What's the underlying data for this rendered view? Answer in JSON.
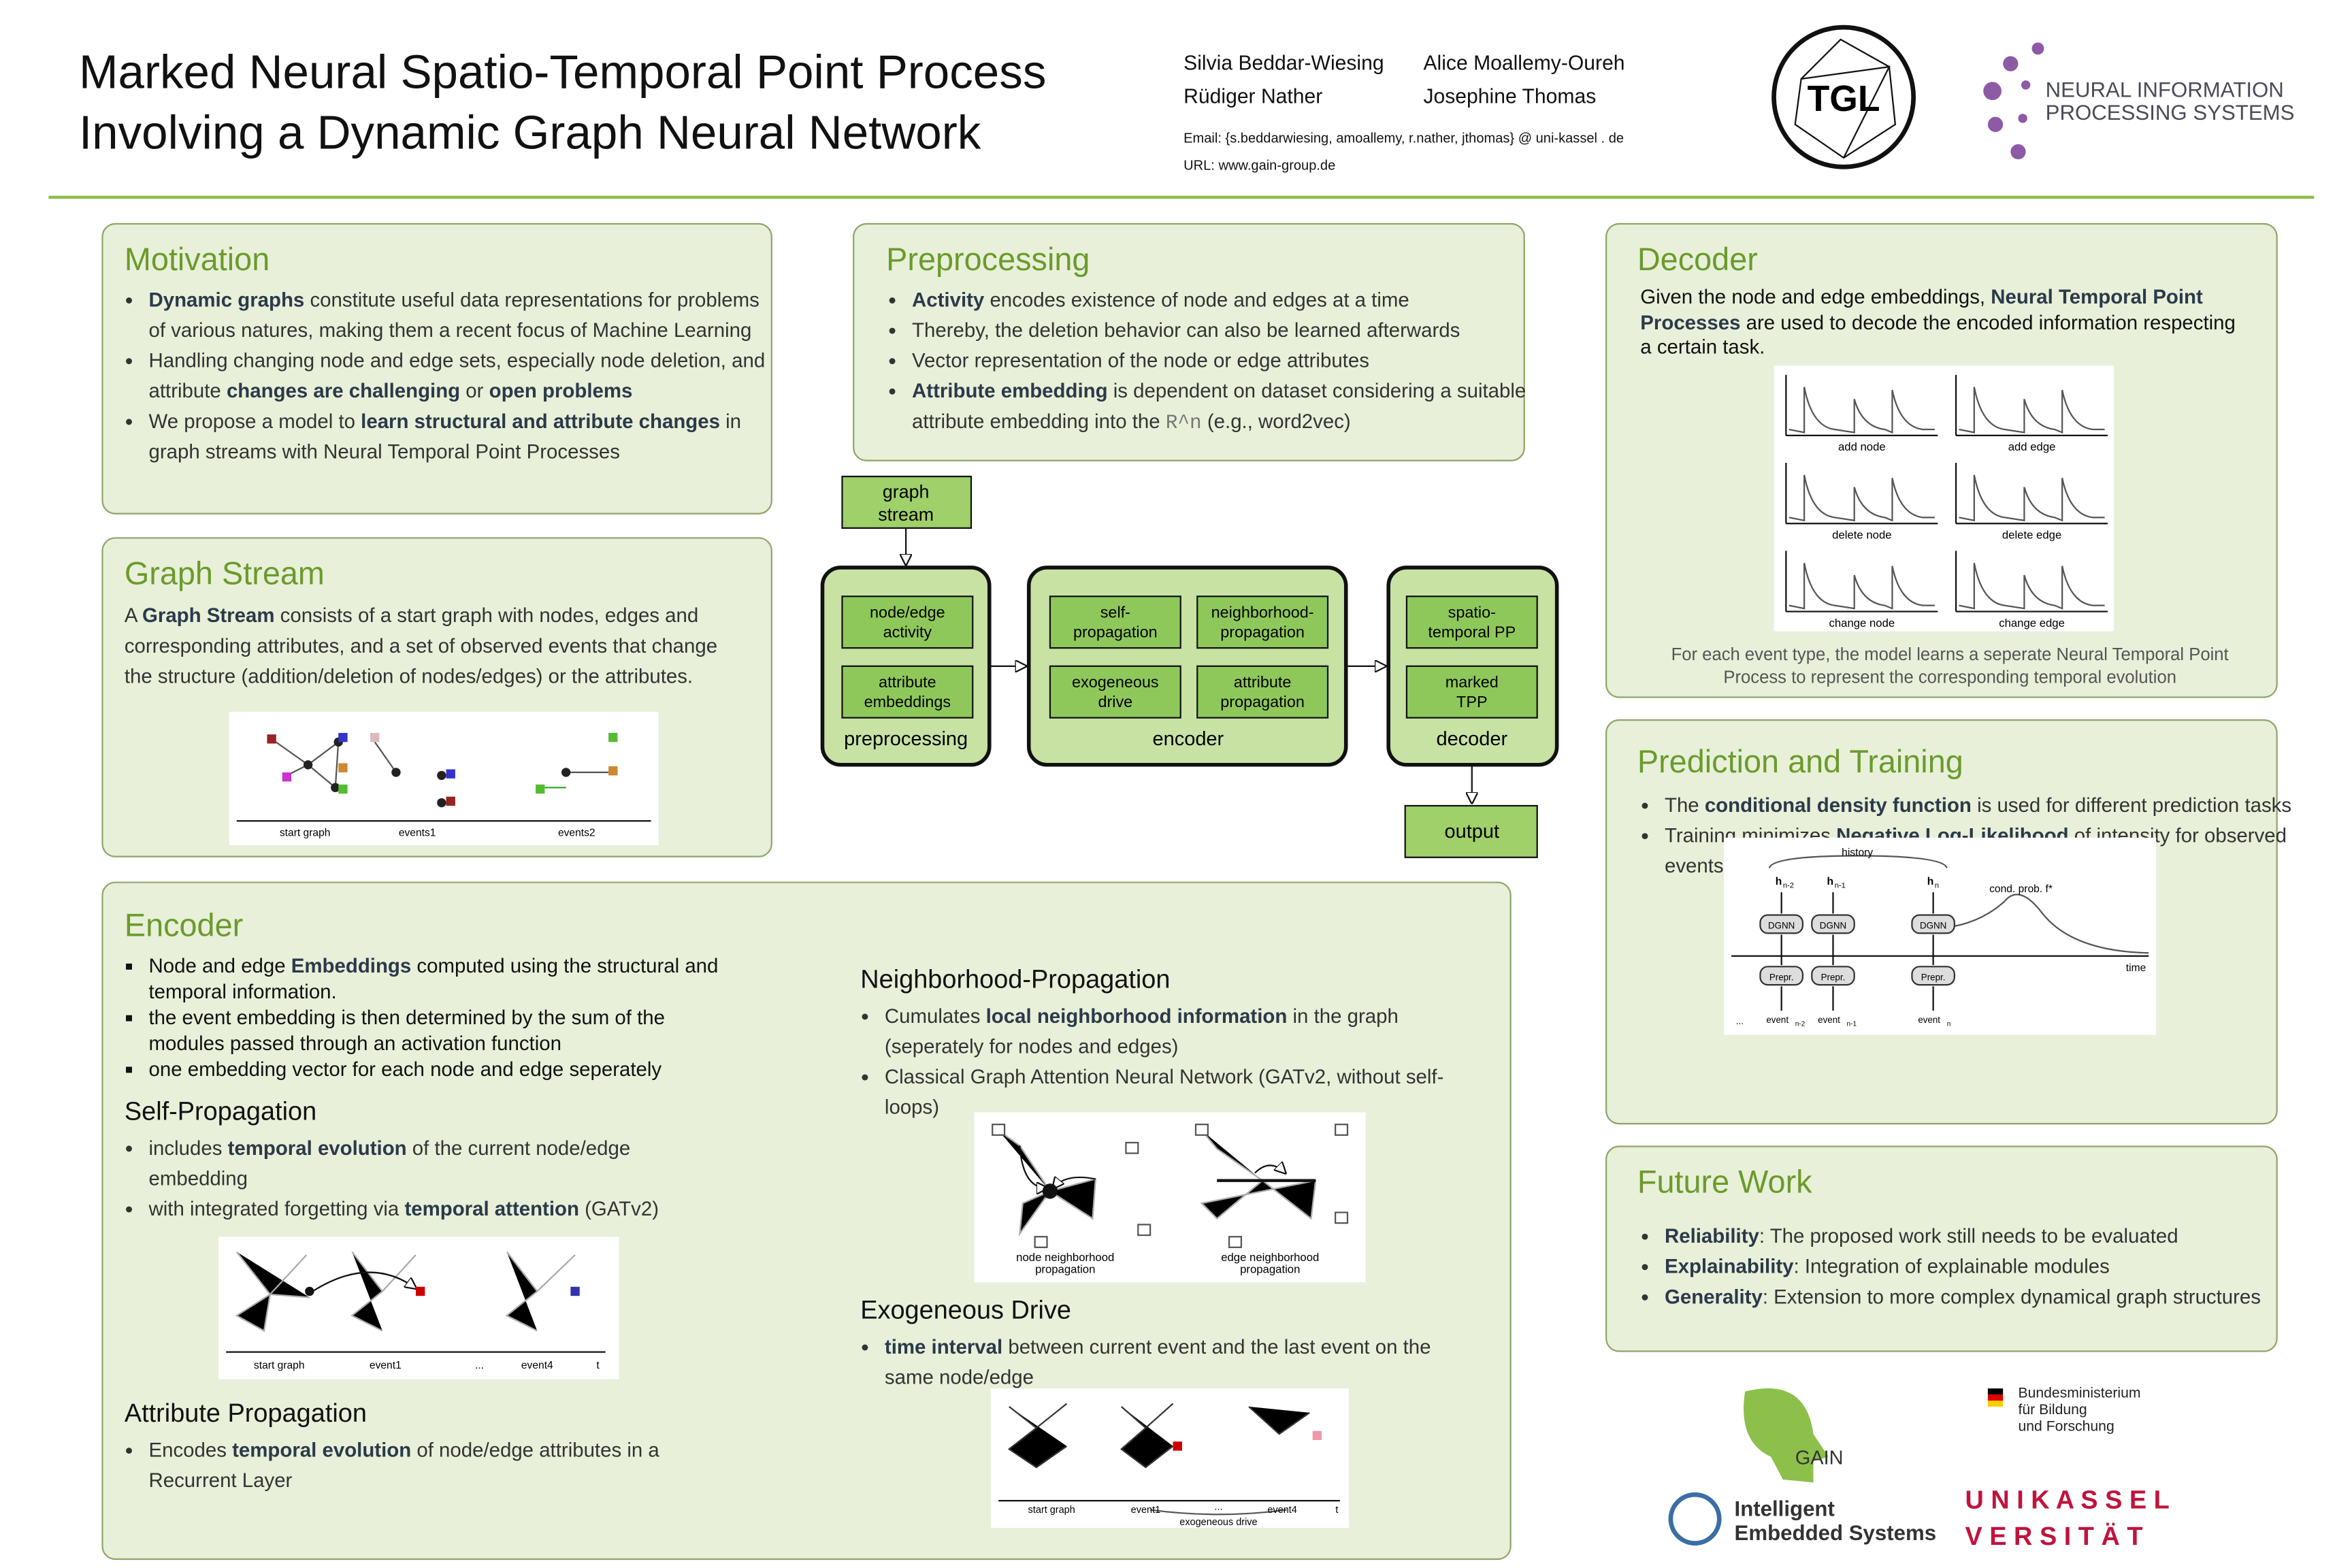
{
  "header": {
    "title": [
      "Marked Neural Spatio-Temporal Point Process",
      "Involving a Dynamic Graph Neural Network"
    ],
    "authors": [
      "Silvia Beddar-Wiesing",
      "Alice Moallemy-Oureh",
      "Rüdiger Nather",
      "Josephine Thomas"
    ],
    "email": "Email: {s.beddarwiesing, amoallemy, r.nather, jthomas} @ uni-kassel . de",
    "url": "URL: www.gain-group.de"
  },
  "logos": {
    "tgl": "TGL",
    "neurips": [
      "NEURAL INFORMATION",
      "PROCESSING SYSTEMS"
    ],
    "gain": "GAIN",
    "ies": [
      "Intelligent",
      "Embedded Systems"
    ],
    "bmbf": [
      "Bundesministerium",
      "für Bildung",
      "und Forschung"
    ],
    "kassel": [
      "U N I K A S S E L",
      "V E R S I T Ä T"
    ]
  },
  "motivation": {
    "title": "Motivation",
    "bullets": [
      [
        {
          "b": "Dynamic graphs"
        },
        " constitute useful data representations for problems of various natures, making them a recent focus of Machine Learning"
      ],
      [
        "Handling changing node and edge sets, especially node deletion, and attribute ",
        {
          "b": "changes are challenging"
        },
        " or ",
        {
          "b": "open problems"
        }
      ],
      [
        "We propose a model to ",
        {
          "b": "learn structural and attribute changes"
        },
        " in graph streams with Neural Temporal Point Processes"
      ]
    ]
  },
  "graph_stream": {
    "title": "Graph Stream",
    "text": [
      "A ",
      {
        "b": "Graph Stream"
      },
      " consists of a start graph with nodes, edges and corresponding attributes, and a set of observed events that change the structure (addition/deletion of nodes/edges) or the attributes."
    ],
    "figure": [
      "start graph",
      "events1",
      "events2"
    ]
  },
  "preprocessing": {
    "title": "Preprocessing",
    "bullets": [
      [
        {
          "b": "Activity"
        },
        " encodes existence of node and edges at a time"
      ],
      [
        "Thereby, the deletion behavior can also be learned afterwards"
      ],
      [
        "Vector representation of the node or edge attributes"
      ],
      [
        {
          "b": "Attribute embedding"
        },
        " is dependent on dataset considering a suitable attribute embedding into the ",
        {
          "m": "R^n"
        },
        " (e.g., word2vec)"
      ]
    ]
  },
  "pipeline": {
    "input": [
      "graph",
      "stream"
    ],
    "preprocessing": {
      "label": "preprocessing",
      "modules": [
        [
          "node/edge",
          "activity"
        ],
        [
          "attribute",
          "embeddings"
        ]
      ]
    },
    "encoder": {
      "label": "encoder",
      "modules": [
        [
          "self-",
          "propagation"
        ],
        [
          "neighborhood-",
          "propagation"
        ],
        [
          "exogeneous",
          "drive"
        ],
        [
          "attribute",
          "propagation"
        ]
      ]
    },
    "decoder": {
      "label": "decoder",
      "modules": [
        [
          "spatio-",
          "temporal PP"
        ],
        [
          "marked",
          "TPP"
        ]
      ]
    },
    "output": "output"
  },
  "decoder": {
    "title": "Decoder",
    "intro": [
      "Given the node and edge embeddings, ",
      {
        "b": "Neural Temporal Point Processes"
      },
      " are used to decode the encoded information respecting a certain task."
    ],
    "figure": [
      "add node",
      "add edge",
      "delete node",
      "delete edge",
      "change node",
      "change edge"
    ],
    "caption": "For each event type, the model learns a seperate Neural Temporal Point Process to represent the corresponding temporal evolution"
  },
  "prediction": {
    "title": "Prediction and Training",
    "bullets": [
      [
        "The ",
        {
          "b": "conditional density function"
        },
        " is used for different prediction tasks"
      ],
      [
        "Training minimizes ",
        {
          "b": "Negative Log-Likelihood"
        },
        " of intensity for observed events and negative samples"
      ]
    ],
    "figure": {
      "history": "history",
      "h": [
        "n-2",
        "n-1",
        "n"
      ],
      "h_base": "h",
      "dgnn": "DGNN",
      "prepr": "Prepr.",
      "event": "event",
      "ellipsis": "...",
      "density": "cond. prob. f*",
      "time": "time"
    }
  },
  "future": {
    "title": "Future Work",
    "bullets": [
      [
        {
          "b": "Reliability"
        },
        ": The proposed work still needs to be evaluated"
      ],
      [
        {
          "b": "Explainability"
        },
        ": Integration of explainable modules"
      ],
      [
        {
          "b": "Generality"
        },
        ": Extension to more complex dynamical graph structures"
      ]
    ]
  },
  "encoder": {
    "title": "Encoder",
    "bullets": [
      [
        "Node and edge ",
        {
          "b": "Embeddings"
        },
        " computed using the structural and temporal information."
      ],
      [
        "the event embedding is then determined by the sum of the modules passed through an activation function"
      ],
      [
        "one embedding vector for each node and edge seperately"
      ]
    ],
    "self": {
      "title": "Self-Propagation",
      "bullets": [
        [
          "includes ",
          {
            "b": "temporal evolution"
          },
          " of the current node/edge embedding"
        ],
        [
          "with integrated forgetting via ",
          {
            "b": "temporal attention"
          },
          " (GATv2)"
        ]
      ],
      "figure": [
        "start graph",
        "event1",
        "...",
        "event4",
        "t"
      ]
    },
    "attribute": {
      "title": "Attribute Propagation",
      "bullets": [
        [
          "Encodes ",
          {
            "b": "temporal evolution"
          },
          " of node/edge attributes in a Recurrent Layer"
        ]
      ]
    },
    "neighborhood": {
      "title": "Neighborhood-Propagation",
      "bullets": [
        [
          "Cumulates ",
          {
            "b": "local neighborhood information"
          },
          " in the graph (seperately for nodes and edges)"
        ],
        [
          "Classical Graph Attention Neural Network (GATv2, without self-loops)"
        ]
      ],
      "figure": [
        [
          "node neighborhood",
          "propagation"
        ],
        [
          "edge neighborhood",
          "propagation"
        ]
      ]
    },
    "exogeneous": {
      "title": "Exogeneous Drive",
      "bullets": [
        [
          {
            "b": "time interval"
          },
          " between current event and the last event on the same node/edge"
        ]
      ],
      "figure": [
        "start graph",
        "event1",
        "...",
        "event4",
        "t",
        "exogeneous drive"
      ]
    }
  }
}
